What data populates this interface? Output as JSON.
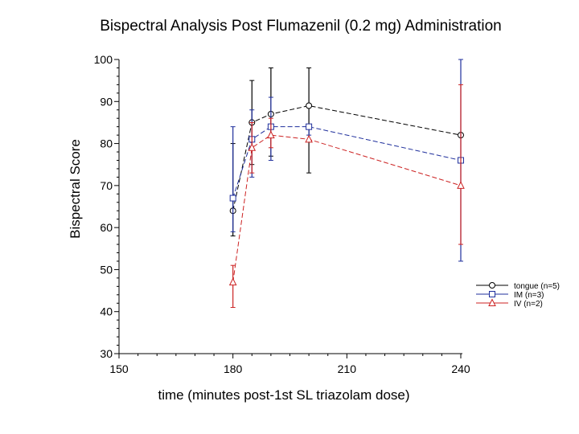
{
  "chart_data": {
    "type": "line",
    "title": "Bispectral Analysis Post Flumazenil (0.2 mg) Administration",
    "xlabel": "time (minutes post-1st SL triazolam dose)",
    "ylabel": "Bispectral Score",
    "xlim": [
      150,
      240
    ],
    "ylim": [
      30,
      100
    ],
    "xticks": [
      150,
      180,
      210,
      240
    ],
    "yticks": [
      30,
      40,
      50,
      60,
      70,
      80,
      90,
      100
    ],
    "legend_position": "right",
    "series": [
      {
        "name": "tongue (n=5)",
        "color": "#000000",
        "marker": "circle",
        "x": [
          180,
          185,
          190,
          200,
          240
        ],
        "y": [
          64,
          85,
          87,
          89,
          82
        ],
        "err_low": [
          58,
          75,
          77,
          73,
          82
        ],
        "err_high": [
          80,
          95,
          98,
          98,
          82
        ]
      },
      {
        "name": "IM (n=3)",
        "color": "#1f2f9c",
        "marker": "square",
        "x": [
          180,
          185,
          190,
          200,
          240
        ],
        "y": [
          67,
          81,
          84,
          84,
          76
        ],
        "err_low": [
          59,
          72,
          76,
          82,
          52
        ],
        "err_high": [
          84,
          88,
          91,
          84,
          100
        ]
      },
      {
        "name": "IV (n=2)",
        "color": "#cc2222",
        "marker": "triangle",
        "x": [
          180,
          185,
          190,
          200,
          240
        ],
        "y": [
          47,
          79,
          82,
          81,
          70
        ],
        "err_low": [
          41,
          73,
          79,
          81,
          56
        ],
        "err_high": [
          51,
          85,
          86,
          81,
          94
        ]
      }
    ]
  }
}
